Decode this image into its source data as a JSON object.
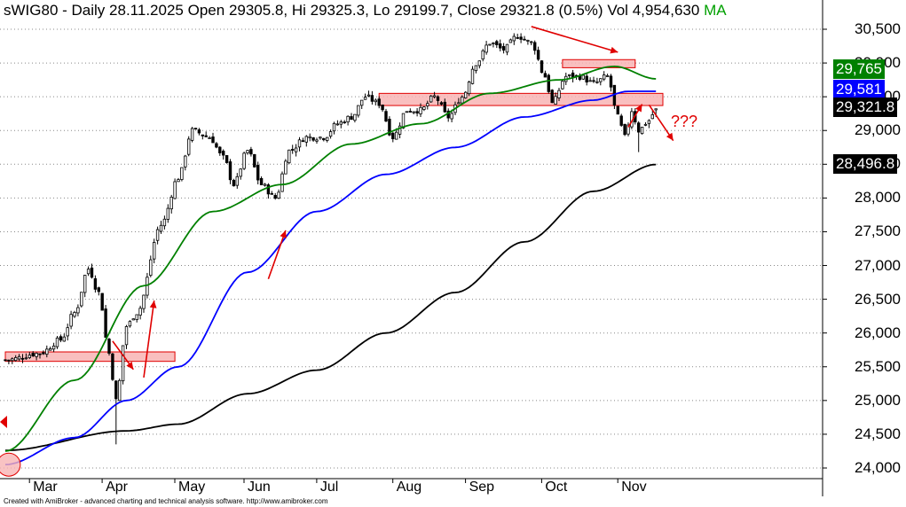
{
  "header": {
    "symbol": "sWIG80",
    "period": "Daily",
    "date": "28.11.2025",
    "open_label": "Open",
    "open": "29305.8",
    "hi_label": "Hi",
    "hi": "29325.3",
    "lo_label": "Lo",
    "lo": "29199.7",
    "close_label": "Close",
    "close": "29321.8",
    "change": "(0.5%)",
    "vol_label": "Vol",
    "vol": "4,954,630",
    "ma_text": "MA"
  },
  "footer": "Created with AmiBroker - advanced charting and technical analysis software. http://www.amibroker.com",
  "annotation_text": "???",
  "colors": {
    "background": "#ffffff",
    "candle_up": "#ffffff",
    "candle_down": "#000000",
    "ma_short": "#008000",
    "ma_mid": "#0000ff",
    "ma_long": "#000000",
    "zone_fill": "#f8b4b4",
    "zone_stroke": "#e00000",
    "arrow": "#e00000"
  },
  "value_tags": [
    {
      "label": "29,765",
      "value": 29765,
      "bg": "#008000",
      "fg": "#ffffff"
    },
    {
      "label": "29,581",
      "value": 29581,
      "bg": "#0000ff",
      "fg": "#ffffff"
    },
    {
      "label": "29,321.8",
      "value": 29321.8,
      "bg": "#000000",
      "fg": "#ffffff"
    },
    {
      "label": "28,496.8",
      "value": 28496.8,
      "bg": "#000000",
      "fg": "#ffffff"
    }
  ],
  "chart_data": {
    "type": "candlestick",
    "title": "sWIG80 - Daily 28.11.2025",
    "ylim": [
      23850,
      30650
    ],
    "y_ticks": [
      24000,
      24500,
      25000,
      25500,
      26000,
      26500,
      27000,
      27500,
      28000,
      28500,
      29000,
      29500,
      30000,
      30500
    ],
    "y_tick_labels": [
      "24,000",
      "24,500",
      "25,000",
      "25,500",
      "26,000",
      "26,500",
      "27,000",
      "27,500",
      "28,000",
      "28,500",
      "29,000",
      "29,500",
      "30,000",
      "30,500"
    ],
    "x_months": [
      "Mar",
      "Apr",
      "May",
      "Jun",
      "Jul",
      "Aug",
      "Sep",
      "Oct",
      "Nov"
    ],
    "x_month_start_index": [
      8,
      29,
      50,
      70,
      91,
      113,
      134,
      156,
      178
    ],
    "num_bars": 189,
    "grid": "horizontal dotted",
    "close_path_anchors": [
      [
        0,
        25600
      ],
      [
        10,
        25700
      ],
      [
        16,
        25900
      ],
      [
        20,
        26300
      ],
      [
        24,
        26950
      ],
      [
        27,
        26600
      ],
      [
        30,
        25700
      ],
      [
        32,
        25000
      ],
      [
        35,
        26100
      ],
      [
        38,
        26300
      ],
      [
        45,
        27600
      ],
      [
        50,
        28300
      ],
      [
        54,
        29000
      ],
      [
        59,
        28900
      ],
      [
        63,
        28600
      ],
      [
        66,
        28200
      ],
      [
        70,
        28700
      ],
      [
        74,
        28200
      ],
      [
        78,
        28000
      ],
      [
        82,
        28700
      ],
      [
        87,
        28900
      ],
      [
        92,
        28900
      ],
      [
        96,
        29100
      ],
      [
        100,
        29200
      ],
      [
        104,
        29500
      ],
      [
        108,
        29400
      ],
      [
        112,
        28900
      ],
      [
        116,
        29300
      ],
      [
        120,
        29300
      ],
      [
        124,
        29500
      ],
      [
        128,
        29200
      ],
      [
        132,
        29500
      ],
      [
        136,
        30000
      ],
      [
        140,
        30300
      ],
      [
        144,
        30200
      ],
      [
        148,
        30400
      ],
      [
        152,
        30300
      ],
      [
        156,
        29800
      ],
      [
        158,
        29400
      ],
      [
        162,
        29800
      ],
      [
        166,
        29800
      ],
      [
        170,
        29700
      ],
      [
        174,
        29800
      ],
      [
        177,
        29200
      ],
      [
        179,
        28900
      ],
      [
        181,
        29300
      ],
      [
        183,
        29000
      ],
      [
        186,
        29150
      ],
      [
        188,
        29321.8
      ]
    ],
    "ma_short": {
      "name": "MA",
      "last_value": 29765,
      "anchors": [
        [
          0,
          24250
        ],
        [
          20,
          25300
        ],
        [
          40,
          26700
        ],
        [
          60,
          27800
        ],
        [
          80,
          28200
        ],
        [
          100,
          28800
        ],
        [
          120,
          29100
        ],
        [
          140,
          29550
        ],
        [
          160,
          29750
        ],
        [
          176,
          29950
        ],
        [
          188,
          29765
        ]
      ]
    },
    "ma_mid": {
      "name": "MA",
      "last_value": 29581,
      "anchors": [
        [
          0,
          24050
        ],
        [
          20,
          24450
        ],
        [
          35,
          25000
        ],
        [
          50,
          25500
        ],
        [
          70,
          26900
        ],
        [
          90,
          27800
        ],
        [
          110,
          28350
        ],
        [
          130,
          28750
        ],
        [
          150,
          29200
        ],
        [
          170,
          29450
        ],
        [
          180,
          29580
        ],
        [
          188,
          29581
        ]
      ]
    },
    "ma_long": {
      "name": "MA",
      "last_value": 28496.8,
      "anchors": [
        [
          0,
          24260
        ],
        [
          35,
          24550
        ],
        [
          50,
          24650
        ],
        [
          70,
          25100
        ],
        [
          90,
          25450
        ],
        [
          110,
          26000
        ],
        [
          130,
          26600
        ],
        [
          150,
          27350
        ],
        [
          170,
          28100
        ],
        [
          188,
          28496.8
        ]
      ]
    },
    "resistance_zones": [
      {
        "from_index": 0,
        "to_index": 49,
        "y_low": 25580,
        "y_high": 25720
      },
      {
        "from_index": 108,
        "to_index": 190,
        "y_low": 29370,
        "y_high": 29550
      },
      {
        "from_index": 161,
        "to_index": 182,
        "y_low": 29930,
        "y_high": 30050
      }
    ],
    "trend_arrows": [
      {
        "from": [
          152,
          30540
        ],
        "to": [
          177,
          30160
        ]
      },
      {
        "from": [
          76,
          26800
        ],
        "to": [
          81,
          27520
        ]
      },
      {
        "from": [
          40,
          25340
        ],
        "to": [
          43,
          26480
        ]
      },
      {
        "from": [
          31,
          25880
        ],
        "to": [
          37,
          25460
        ]
      },
      {
        "from": [
          186,
          29380
        ],
        "to": [
          193,
          28850
        ]
      },
      {
        "from": [
          180,
          29050
        ],
        "to": [
          184,
          29390
        ]
      }
    ],
    "highlighted_circle": {
      "index": 1,
      "value": 24050
    }
  }
}
